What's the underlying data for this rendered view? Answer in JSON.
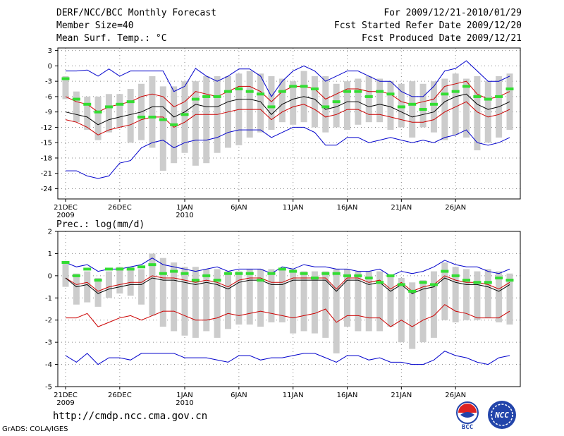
{
  "header": {
    "title": "DERF/NCC/BCC Monthly Forecast",
    "member_size": "Member Size=40",
    "variable": "Mean Surf. Temp.: °C",
    "period": "For 2009/12/21-2010/01/29",
    "started": "Fcst Started Refer Date 2009/12/20",
    "produced": "Fcst Produced Date 2009/12/21"
  },
  "footer": {
    "url": "http://cmdp.ncc.cma.gov.cn",
    "grads": "GrADS: COLA/IGES",
    "logo_left": "BCC",
    "logo_right": "NCC"
  },
  "colors": {
    "spread": "#cccccc",
    "ens_min_max": "#0000cc",
    "ens_sd": "#cc0000",
    "ens_mean": "#000000",
    "climate": "#33dd33"
  },
  "chart_data": [
    {
      "type": "line",
      "title": "Mean Surf. Temp.: °C",
      "xlabel": "",
      "ylabel": "",
      "ylim": [
        -26,
        3.5
      ],
      "yticks": [
        3,
        0,
        -3,
        -6,
        -9,
        -12,
        -15,
        -18,
        -21,
        -24
      ],
      "x_ticks": [
        {
          "day": 1,
          "label": "21DEC",
          "sub": "2009"
        },
        {
          "day": 6,
          "label": "26DEC",
          "sub": ""
        },
        {
          "day": 12,
          "label": "1JAN",
          "sub": "2010"
        },
        {
          "day": 17,
          "label": "6JAN",
          "sub": ""
        },
        {
          "day": 22,
          "label": "11JAN",
          "sub": ""
        },
        {
          "day": 27,
          "label": "16JAN",
          "sub": ""
        },
        {
          "day": 32,
          "label": "21JAN",
          "sub": ""
        },
        {
          "day": 37,
          "label": "26JAN",
          "sub": ""
        }
      ],
      "series": [
        {
          "name": "max",
          "color": "#0000cc",
          "values": [
            -1,
            -1,
            -0.8,
            -2,
            -0.6,
            -2,
            -1,
            -1,
            -1,
            -1,
            -5,
            -4,
            -0.5,
            -2,
            -3,
            -2,
            -0.6,
            -0.6,
            -2,
            -6,
            -3,
            -1,
            0,
            -1,
            -3,
            -2,
            -1,
            -1,
            -2,
            -3,
            -3,
            -5,
            -6,
            -6,
            -4,
            -1,
            -0.5,
            1,
            -1,
            -3,
            -3,
            -2
          ]
        },
        {
          "name": "mean+sd",
          "color": "#cc0000",
          "values": [
            -6,
            -7,
            -7.5,
            -9,
            -8,
            -7.5,
            -7,
            -6,
            -5.5,
            -6,
            -8,
            -7,
            -5,
            -5.5,
            -6,
            -5,
            -4,
            -4,
            -5,
            -7,
            -5,
            -4,
            -4,
            -4.5,
            -6.5,
            -5.5,
            -4.5,
            -4.5,
            -5,
            -5,
            -5.5,
            -7,
            -7.5,
            -7,
            -6.5,
            -4,
            -3.5,
            -3,
            -5.5,
            -6.5,
            -6,
            -5
          ]
        },
        {
          "name": "mean",
          "color": "#000000",
          "values": [
            -9,
            -9.5,
            -10,
            -11.5,
            -10.5,
            -10,
            -9.5,
            -9,
            -8,
            -8,
            -10,
            -9,
            -7.5,
            -8,
            -8,
            -7,
            -6.5,
            -6.5,
            -7,
            -9.5,
            -7.5,
            -6.5,
            -6,
            -6.5,
            -8.5,
            -8,
            -7,
            -7,
            -8,
            -7.5,
            -8,
            -9,
            -10,
            -9.5,
            -9,
            -7,
            -6,
            -5.5,
            -7.5,
            -8.5,
            -8,
            -7
          ]
        },
        {
          "name": "mean-sd",
          "color": "#cc0000",
          "values": [
            -10.5,
            -11,
            -12,
            -13.5,
            -12.5,
            -12,
            -11.5,
            -10.5,
            -10,
            -10,
            -12,
            -11,
            -9.5,
            -9.5,
            -9.5,
            -9,
            -8.5,
            -8.5,
            -8.5,
            -10.5,
            -9,
            -8,
            -7.5,
            -8.5,
            -10,
            -9.5,
            -8.5,
            -8.5,
            -9.5,
            -9.5,
            -10,
            -10.5,
            -11,
            -11,
            -10.5,
            -9,
            -8,
            -7,
            -9,
            -10,
            -9.5,
            -8.5
          ]
        },
        {
          "name": "min",
          "color": "#0000cc",
          "values": [
            -20.5,
            -20.5,
            -21.5,
            -22,
            -21.5,
            -19,
            -18.5,
            -16,
            -15,
            -14.5,
            -16,
            -15,
            -14.5,
            -14.5,
            -14,
            -13,
            -12.5,
            -12.5,
            -12.5,
            -14,
            -13,
            -12,
            -12,
            -13,
            -15.5,
            -15.5,
            -14,
            -14,
            -15,
            -14.5,
            -14,
            -14.5,
            -15,
            -14.5,
            -15,
            -14,
            -13.5,
            -12.5,
            -15,
            -15.5,
            -15,
            -14
          ]
        }
      ],
      "spread_bars": [
        [
          -6.5,
          -2
        ],
        [
          -11,
          -5
        ],
        [
          -12.5,
          -6
        ],
        [
          -14.5,
          -6
        ],
        [
          -13,
          -5.5
        ],
        [
          -12,
          -5.5
        ],
        [
          -15,
          -4.5
        ],
        [
          -14.5,
          -3.5
        ],
        [
          -16,
          -2
        ],
        [
          -20.5,
          -4
        ],
        [
          -19,
          -4
        ],
        [
          -17,
          -3
        ],
        [
          -19.5,
          -3
        ],
        [
          -19,
          -2
        ],
        [
          -17,
          -2
        ],
        [
          -16,
          -2
        ],
        [
          -15.5,
          -1.5
        ],
        [
          -14,
          -1
        ],
        [
          -13,
          -1.5
        ],
        [
          -12.5,
          -2
        ],
        [
          -11,
          -2.5
        ],
        [
          -11.5,
          -3
        ],
        [
          -11,
          -1
        ],
        [
          -12,
          -2
        ],
        [
          -13,
          -2
        ],
        [
          -12,
          -3.5
        ],
        [
          -12.5,
          -3
        ],
        [
          -11.5,
          -2.5
        ],
        [
          -11,
          -2
        ],
        [
          -11,
          -2.5
        ],
        [
          -12.5,
          -3
        ],
        [
          -12,
          -3.5
        ],
        [
          -14,
          -3
        ],
        [
          -12,
          -3.5
        ],
        [
          -13,
          -3
        ],
        [
          -14.5,
          -2.5
        ],
        [
          -13.5,
          -1.5
        ],
        [
          -14,
          -2.5
        ],
        [
          -16.5,
          -2
        ],
        [
          -15,
          -3
        ],
        [
          -14,
          -2
        ],
        [
          -12.5,
          -1.5
        ]
      ],
      "climate": [
        -2.5,
        -6.5,
        -7.5,
        -9,
        -8,
        -7.5,
        -7,
        -10,
        -10,
        -10.5,
        -11.5,
        -9.5,
        -6.5,
        -6,
        -6,
        -5,
        -4.5,
        -5,
        -5.5,
        -8,
        -5,
        -4,
        -4,
        -4.5,
        -8,
        -7,
        -5,
        -5,
        -6,
        -5,
        -5.5,
        -8,
        -7.5,
        -8.5,
        -7.5,
        -5.5,
        -5,
        -4,
        -6,
        -6.5,
        -6,
        -4.5
      ]
    },
    {
      "type": "line",
      "title": "Prec.: log(mm/d)",
      "xlabel": "",
      "ylabel": "",
      "ylim": [
        -5,
        2
      ],
      "yticks": [
        2,
        1,
        0,
        -1,
        -2,
        -3,
        -4,
        -5
      ],
      "x_ticks": [
        {
          "day": 1,
          "label": "21DEC",
          "sub": "2009"
        },
        {
          "day": 6,
          "label": "26DEC",
          "sub": ""
        },
        {
          "day": 12,
          "label": "1JAN",
          "sub": "2010"
        },
        {
          "day": 17,
          "label": "6JAN",
          "sub": ""
        },
        {
          "day": 22,
          "label": "11JAN",
          "sub": ""
        },
        {
          "day": 27,
          "label": "16JAN",
          "sub": ""
        },
        {
          "day": 32,
          "label": "21JAN",
          "sub": ""
        },
        {
          "day": 37,
          "label": "26JAN",
          "sub": ""
        }
      ],
      "series": [
        {
          "name": "max",
          "color": "#0000cc",
          "values": [
            0.6,
            0.4,
            0.5,
            0.2,
            0.3,
            0.3,
            0.4,
            0.5,
            0.8,
            0.5,
            0.4,
            0.3,
            0.2,
            0.3,
            0.4,
            0.2,
            0.3,
            0.3,
            0.3,
            0.1,
            0.4,
            0.3,
            0.5,
            0.4,
            0.4,
            0.3,
            0.3,
            0.2,
            0.2,
            0.3,
            0,
            0.2,
            0.1,
            0.2,
            0.4,
            0.7,
            0.5,
            0.4,
            0.4,
            0.2,
            0.1,
            0.3
          ]
        },
        {
          "name": "mean+sd",
          "color": "#cc0000",
          "values": [
            -0.1,
            -0.4,
            -0.3,
            -0.7,
            -0.5,
            -0.4,
            -0.3,
            -0.3,
            0,
            -0.1,
            -0.1,
            -0.2,
            -0.3,
            -0.2,
            -0.3,
            -0.5,
            -0.2,
            -0.1,
            -0.1,
            -0.3,
            -0.3,
            -0.1,
            -0.1,
            -0.1,
            -0.1,
            -0.6,
            -0.1,
            -0.1,
            -0.3,
            -0.2,
            -0.6,
            -0.3,
            -0.7,
            -0.5,
            -0.4,
            0,
            -0.2,
            -0.3,
            -0.3,
            -0.4,
            -0.6,
            -0.3
          ]
        },
        {
          "name": "mean",
          "color": "#000000",
          "values": [
            -0.1,
            -0.5,
            -0.4,
            -0.8,
            -0.6,
            -0.5,
            -0.4,
            -0.4,
            -0.1,
            -0.2,
            -0.2,
            -0.3,
            -0.4,
            -0.3,
            -0.4,
            -0.6,
            -0.3,
            -0.2,
            -0.2,
            -0.4,
            -0.4,
            -0.2,
            -0.2,
            -0.2,
            -0.2,
            -0.7,
            -0.2,
            -0.2,
            -0.4,
            -0.3,
            -0.7,
            -0.4,
            -0.8,
            -0.6,
            -0.5,
            -0.1,
            -0.3,
            -0.4,
            -0.4,
            -0.5,
            -0.7,
            -0.4
          ]
        },
        {
          "name": "mean-sd",
          "color": "#cc0000",
          "values": [
            -1.9,
            -1.9,
            -1.7,
            -2.3,
            -2.1,
            -1.9,
            -1.8,
            -2,
            -1.8,
            -1.6,
            -1.6,
            -1.8,
            -2,
            -2,
            -1.9,
            -1.7,
            -1.8,
            -1.7,
            -1.6,
            -1.7,
            -1.8,
            -1.9,
            -1.8,
            -1.7,
            -1.5,
            -2.1,
            -1.8,
            -1.8,
            -1.9,
            -1.9,
            -2.3,
            -2,
            -2.3,
            -2,
            -1.8,
            -1.3,
            -1.6,
            -1.7,
            -1.9,
            -1.9,
            -1.9,
            -1.6
          ]
        },
        {
          "name": "min",
          "color": "#0000cc",
          "values": [
            -3.6,
            -3.9,
            -3.5,
            -4,
            -3.7,
            -3.7,
            -3.8,
            -3.5,
            -3.5,
            -3.5,
            -3.5,
            -3.7,
            -3.7,
            -3.7,
            -3.8,
            -3.9,
            -3.6,
            -3.6,
            -3.8,
            -3.7,
            -3.7,
            -3.6,
            -3.5,
            -3.5,
            -3.7,
            -3.9,
            -3.6,
            -3.6,
            -3.8,
            -3.7,
            -3.9,
            -3.9,
            -4,
            -4,
            -3.8,
            -3.4,
            -3.6,
            -3.7,
            -3.9,
            -4,
            -3.7,
            -3.6
          ]
        },
        {
          "name": "climate",
          "color": "#33dd33",
          "values": [
            0.6,
            0,
            0.3,
            -0.2,
            0.3,
            0.3,
            0.3,
            0.4,
            0.5,
            0.1,
            0.2,
            0.1,
            -0.2,
            0,
            -0.2,
            0.1,
            0.1,
            0.1,
            -0.2,
            0.1,
            0.3,
            0.2,
            0.1,
            -0.1,
            0.1,
            0.1,
            0,
            0,
            -0.1,
            -0.3,
            0,
            -0.4,
            -0.7,
            -0.3,
            -0.4,
            0.2,
            0,
            -0.2,
            -0.3,
            -0.3,
            -0.1,
            -0.2
          ]
        }
      ],
      "spread_bars": [
        [
          -0.5,
          0.6
        ],
        [
          -1.3,
          0.1
        ],
        [
          -1.2,
          0.2
        ],
        [
          -1.4,
          -0.1
        ],
        [
          -1,
          0.2
        ],
        [
          -0.8,
          0.4
        ],
        [
          -0.9,
          0.4
        ],
        [
          -1.3,
          0.3
        ],
        [
          -1.8,
          1
        ],
        [
          -2.3,
          0.8
        ],
        [
          -2.5,
          0.6
        ],
        [
          -2.7,
          0.4
        ],
        [
          -2.8,
          0.4
        ],
        [
          -2.5,
          0.3
        ],
        [
          -2.8,
          0.3
        ],
        [
          -2.4,
          0.2
        ],
        [
          -2.2,
          0.2
        ],
        [
          -2.2,
          0.3
        ],
        [
          -2.3,
          0.3
        ],
        [
          -2.1,
          0.3
        ],
        [
          -2.1,
          0.3
        ],
        [
          -2.6,
          0.3
        ],
        [
          -2.5,
          0.2
        ],
        [
          -2.6,
          0.2
        ],
        [
          -2.8,
          0.2
        ],
        [
          -3.5,
          0.3
        ],
        [
          -2.3,
          0.3
        ],
        [
          -2.5,
          0.2
        ],
        [
          -2.5,
          0.2
        ],
        [
          -2.5,
          0.2
        ],
        [
          -2.3,
          0
        ],
        [
          -3,
          -0.1
        ],
        [
          -3.3,
          -0.3
        ],
        [
          -3,
          -0.2
        ],
        [
          -2.8,
          0.2
        ],
        [
          -2,
          0.6
        ],
        [
          -2.1,
          0.4
        ],
        [
          -2,
          0.3
        ],
        [
          -2,
          0.2
        ],
        [
          -1.9,
          0.3
        ],
        [
          -2.1,
          0.2
        ],
        [
          -2.2,
          0.1
        ]
      ],
      "climate": [
        0.6,
        0,
        0.3,
        -0.2,
        0.3,
        0.3,
        0.3,
        0.4,
        0.5,
        0.1,
        0.2,
        0.1,
        -0.2,
        0,
        -0.2,
        0.1,
        0.1,
        0.1,
        -0.2,
        0.1,
        0.3,
        0.2,
        0.1,
        -0.1,
        0.1,
        0.1,
        0,
        0,
        -0.1,
        -0.3,
        0,
        -0.4,
        -0.7,
        -0.3,
        -0.4,
        0.2,
        0,
        -0.2,
        -0.3,
        -0.3,
        -0.1,
        -0.2
      ]
    }
  ]
}
